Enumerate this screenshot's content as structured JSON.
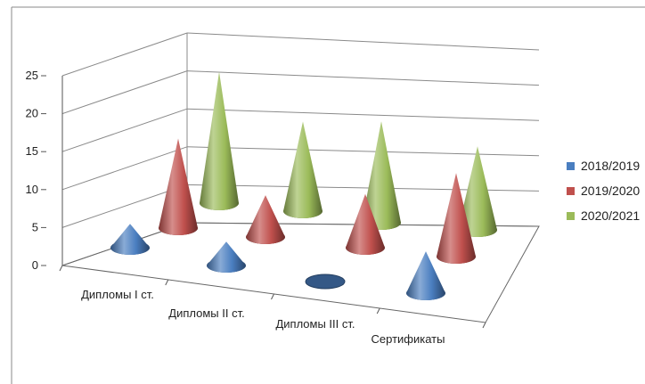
{
  "colors": {
    "series_2018": "#4a7ec0",
    "series_2019": "#c0504d",
    "series_2020": "#9bbb59"
  },
  "chart_data": {
    "type": "bar",
    "style": "3d-cone",
    "categories": [
      "Дипломы I ст.",
      "Дипломы II ст.",
      "Дипломы III ст.",
      "Сертификаты"
    ],
    "series": [
      {
        "name": "2018/2019",
        "values": [
          4,
          4,
          0,
          7
        ]
      },
      {
        "name": "2019/2020",
        "values": [
          15,
          7,
          9,
          14
        ]
      },
      {
        "name": "2020/2021",
        "values": [
          22,
          15,
          17,
          14
        ]
      }
    ],
    "yticks": [
      "0",
      "5",
      "10",
      "15",
      "20",
      "25"
    ],
    "ylim": [
      0,
      25
    ],
    "grid": true,
    "legend": "right"
  }
}
